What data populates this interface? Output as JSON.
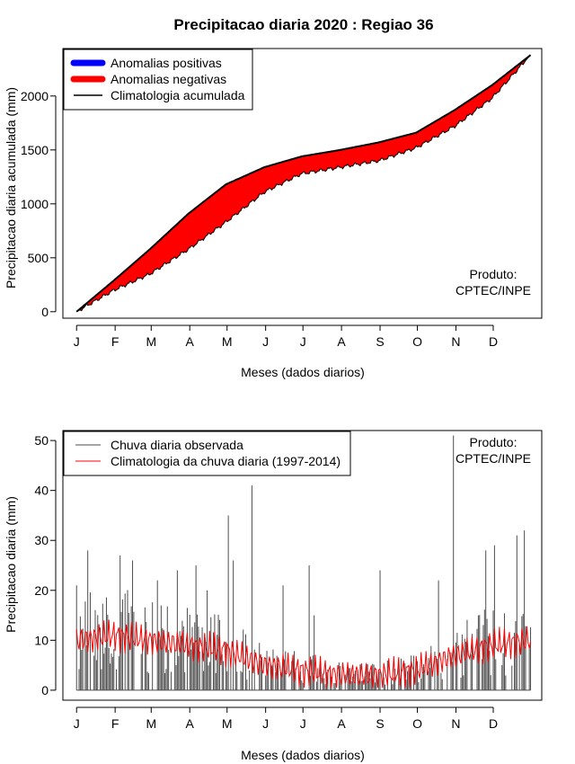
{
  "title": "Precipitacao diaria 2020 : Regiao 36",
  "product_label": {
    "line1": "Produto:",
    "line2": "CPTEC/INPE"
  },
  "colors": {
    "positive": "#0000ff",
    "negative": "#ff0000",
    "climatology": "#000000",
    "observed": "#4d4d4d",
    "climatology_daily": "#ff0000"
  },
  "chart_data": [
    {
      "type": "area",
      "title": "Precipitacao diaria 2020 : Regiao 36",
      "xlabel": "Meses (dados diarios)",
      "ylabel": "Precipitacao diaria acumulada (mm)",
      "month_ticks": [
        "J",
        "F",
        "M",
        "A",
        "M",
        "J",
        "J",
        "A",
        "S",
        "O",
        "N",
        "D"
      ],
      "yticks": [
        0,
        500,
        1000,
        1500,
        2000
      ],
      "ylim": [
        -60,
        2440
      ],
      "xlim": [
        -10,
        375
      ],
      "legend": [
        {
          "label": "Anomalias positivas",
          "color": "#0000ff"
        },
        {
          "label": "Anomalias negativas",
          "color": "#ff0000"
        },
        {
          "label": "Climatologia acumulada",
          "color": "#000000"
        }
      ],
      "legend_position": "top-left",
      "climatology_cumulative": {
        "days": [
          1,
          31,
          60,
          91,
          121,
          152,
          182,
          213,
          244,
          274,
          305,
          335,
          366
        ],
        "values": [
          0,
          290,
          580,
          910,
          1180,
          1340,
          1440,
          1500,
          1570,
          1660,
          1870,
          2100,
          2380
        ]
      },
      "observed_cumulative": {
        "days": [
          1,
          31,
          60,
          91,
          121,
          152,
          182,
          213,
          244,
          274,
          305,
          335,
          366
        ],
        "values": [
          0,
          200,
          350,
          580,
          830,
          1110,
          1280,
          1340,
          1400,
          1520,
          1720,
          1980,
          2380
        ]
      }
    },
    {
      "type": "bar",
      "xlabel": "Meses (dados diarios)",
      "ylabel": "Precipitacao diaria (mm)",
      "month_ticks": [
        "J",
        "F",
        "M",
        "A",
        "M",
        "J",
        "J",
        "A",
        "S",
        "O",
        "N",
        "D"
      ],
      "yticks": [
        0,
        10,
        20,
        30,
        40,
        50
      ],
      "ylim": [
        -2,
        52
      ],
      "xlim": [
        -10,
        375
      ],
      "legend": [
        {
          "label": "Chuva diaria observada",
          "color": "#4d4d4d"
        },
        {
          "label": "Climatologia da chuva diaria (1997-2014)",
          "color": "#ff0000"
        }
      ],
      "legend_position": "top-left",
      "observed_peaks": [
        {
          "day": 1,
          "value": 21
        },
        {
          "day": 10,
          "value": 28
        },
        {
          "day": 36,
          "value": 27
        },
        {
          "day": 46,
          "value": 26
        },
        {
          "day": 66,
          "value": 22
        },
        {
          "day": 82,
          "value": 24
        },
        {
          "day": 97,
          "value": 25
        },
        {
          "day": 106,
          "value": 20
        },
        {
          "day": 123,
          "value": 35
        },
        {
          "day": 127,
          "value": 26
        },
        {
          "day": 142,
          "value": 41
        },
        {
          "day": 167,
          "value": 21
        },
        {
          "day": 188,
          "value": 25
        },
        {
          "day": 192,
          "value": 15
        },
        {
          "day": 245,
          "value": 24
        },
        {
          "day": 292,
          "value": 22
        },
        {
          "day": 304,
          "value": 51
        },
        {
          "day": 330,
          "value": 28
        },
        {
          "day": 337,
          "value": 29
        },
        {
          "day": 355,
          "value": 31
        },
        {
          "day": 361,
          "value": 32
        }
      ],
      "climatology_daily": {
        "days": [
          1,
          31,
          60,
          91,
          121,
          152,
          182,
          213,
          244,
          274,
          305,
          335,
          366
        ],
        "values": [
          10,
          11,
          10,
          9,
          8,
          5,
          4,
          3,
          3,
          4,
          7,
          9,
          10
        ]
      }
    }
  ]
}
